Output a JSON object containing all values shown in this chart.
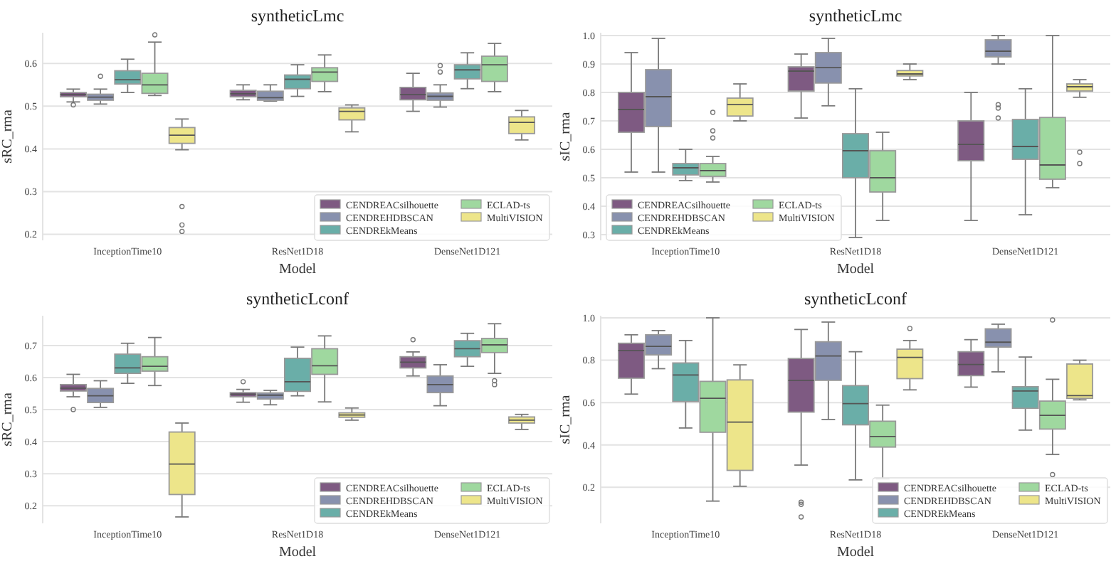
{
  "chart_data": [
    {
      "type": "box",
      "title": "syntheticLmc",
      "xlabel": "Model",
      "ylabel": "sRC_rma",
      "categories": [
        "InceptionTime10",
        "ResNet1D18",
        "DenseNet1D121"
      ],
      "ylim": [
        0.186,
        0.672
      ],
      "yticks": [
        0.2,
        0.3,
        0.4,
        0.5,
        0.6
      ],
      "grid": "y",
      "legend": "bottom right",
      "series": [
        {
          "name": "CENDREACsilhouette",
          "color": "#7e5a82",
          "boxes": [
            {
              "low": 0.51,
              "q1": 0.522,
              "median": 0.527,
              "q3": 0.532,
              "high": 0.54,
              "outliers": [
                0.503
              ]
            },
            {
              "low": 0.515,
              "q1": 0.522,
              "median": 0.529,
              "q3": 0.537,
              "high": 0.55
            },
            {
              "low": 0.488,
              "q1": 0.515,
              "median": 0.527,
              "q3": 0.544,
              "high": 0.577
            }
          ]
        },
        {
          "name": "CENDREHDBSCAN",
          "color": "#8891ae",
          "boxes": [
            {
              "low": 0.505,
              "q1": 0.514,
              "median": 0.521,
              "q3": 0.528,
              "high": 0.54,
              "outliers": [
                0.57
              ]
            },
            {
              "low": 0.512,
              "q1": 0.514,
              "median": 0.52,
              "q3": 0.535,
              "high": 0.55
            },
            {
              "low": 0.498,
              "q1": 0.514,
              "median": 0.523,
              "q3": 0.531,
              "high": 0.55,
              "outliers": [
                0.58,
                0.595
              ]
            }
          ]
        },
        {
          "name": "CENDREkMeans",
          "color": "#6aaea8",
          "boxes": [
            {
              "low": 0.532,
              "q1": 0.552,
              "median": 0.562,
              "q3": 0.583,
              "high": 0.61
            },
            {
              "low": 0.523,
              "q1": 0.541,
              "median": 0.563,
              "q3": 0.573,
              "high": 0.597
            },
            {
              "low": 0.541,
              "q1": 0.564,
              "median": 0.585,
              "q3": 0.597,
              "high": 0.625
            }
          ]
        },
        {
          "name": "ECLAD-ts",
          "color": "#9fd89f",
          "boxes": [
            {
              "low": 0.525,
              "q1": 0.53,
              "median": 0.55,
              "q3": 0.577,
              "high": 0.65,
              "outliers": [
                0.667
              ]
            },
            {
              "low": 0.534,
              "q1": 0.558,
              "median": 0.58,
              "q3": 0.59,
              "high": 0.62
            },
            {
              "low": 0.534,
              "q1": 0.558,
              "median": 0.597,
              "q3": 0.617,
              "high": 0.647
            }
          ]
        },
        {
          "name": "MultiVISION",
          "color": "#ede58a",
          "boxes": [
            {
              "low": 0.398,
              "q1": 0.413,
              "median": 0.432,
              "q3": 0.45,
              "high": 0.47,
              "outliers": [
                0.265,
                0.222,
                0.207
              ]
            },
            {
              "low": 0.44,
              "q1": 0.468,
              "median": 0.488,
              "q3": 0.496,
              "high": 0.503
            },
            {
              "low": 0.421,
              "q1": 0.436,
              "median": 0.462,
              "q3": 0.475,
              "high": 0.49
            }
          ]
        }
      ]
    },
    {
      "type": "box",
      "title": "syntheticLmc",
      "xlabel": "Model",
      "ylabel": "sIC_rma",
      "categories": [
        "InceptionTime10",
        "ResNet1D18",
        "DenseNet1D121"
      ],
      "ylim": [
        0.28,
        1.01
      ],
      "yticks": [
        0.3,
        0.4,
        0.5,
        0.6,
        0.7,
        0.8,
        0.9,
        {
          "value": 1.0,
          "label": "1.0"
        }
      ],
      "grid": "y",
      "legend": "bottom left",
      "series": [
        {
          "name": "CENDREACsilhouette",
          "color": "#7e5a82",
          "boxes": [
            {
              "low": 0.52,
              "q1": 0.66,
              "median": 0.74,
              "q3": 0.8,
              "high": 0.94
            },
            {
              "low": 0.71,
              "q1": 0.805,
              "median": 0.875,
              "q3": 0.89,
              "high": 0.935
            },
            {
              "low": 0.35,
              "q1": 0.56,
              "median": 0.617,
              "q3": 0.7,
              "high": 0.8
            }
          ]
        },
        {
          "name": "CENDREHDBSCAN",
          "color": "#8891ae",
          "boxes": [
            {
              "low": 0.52,
              "q1": 0.68,
              "median": 0.785,
              "q3": 0.88,
              "high": 0.99
            },
            {
              "low": 0.753,
              "q1": 0.833,
              "median": 0.887,
              "q3": 0.94,
              "high": 0.99
            },
            {
              "low": 0.9,
              "q1": 0.925,
              "median": 0.945,
              "q3": 0.985,
              "high": 1.0,
              "outliers": [
                0.71,
                0.745,
                0.757
              ]
            }
          ]
        },
        {
          "name": "CENDREkMeans",
          "color": "#6aaea8",
          "boxes": [
            {
              "low": 0.49,
              "q1": 0.51,
              "median": 0.535,
              "q3": 0.55,
              "high": 0.6
            },
            {
              "low": 0.29,
              "q1": 0.5,
              "median": 0.595,
              "q3": 0.655,
              "high": 0.813
            },
            {
              "low": 0.37,
              "q1": 0.565,
              "median": 0.61,
              "q3": 0.705,
              "high": 0.813
            }
          ]
        },
        {
          "name": "ECLAD-ts",
          "color": "#9fd89f",
          "boxes": [
            {
              "low": 0.485,
              "q1": 0.505,
              "median": 0.525,
              "q3": 0.55,
              "high": 0.575,
              "outliers": [
                0.64,
                0.665,
                0.73
              ]
            },
            {
              "low": 0.35,
              "q1": 0.45,
              "median": 0.5,
              "q3": 0.595,
              "high": 0.66
            },
            {
              "low": 0.465,
              "q1": 0.495,
              "median": 0.545,
              "q3": 0.712,
              "high": 1.0
            }
          ]
        },
        {
          "name": "MultiVISION",
          "color": "#ede58a",
          "boxes": [
            {
              "low": 0.7,
              "q1": 0.717,
              "median": 0.757,
              "q3": 0.78,
              "high": 0.83
            },
            {
              "low": 0.845,
              "q1": 0.858,
              "median": 0.865,
              "q3": 0.877,
              "high": 0.9
            },
            {
              "low": 0.783,
              "q1": 0.805,
              "median": 0.82,
              "q3": 0.83,
              "high": 0.845,
              "outliers": [
                0.55,
                0.59
              ]
            }
          ]
        }
      ]
    },
    {
      "type": "box",
      "title": "syntheticLconf",
      "xlabel": "Model",
      "ylabel": "sRC_rma",
      "categories": [
        "InceptionTime10",
        "ResNet1D18",
        "DenseNet1D121"
      ],
      "ylim": [
        0.145,
        0.793
      ],
      "yticks": [
        0.2,
        0.3,
        0.4,
        0.5,
        0.6,
        0.7
      ],
      "grid": "y",
      "legend": "bottom right",
      "series": [
        {
          "name": "CENDREACsilhouette",
          "color": "#7e5a82",
          "boxes": [
            {
              "low": 0.54,
              "q1": 0.558,
              "median": 0.567,
              "q3": 0.578,
              "high": 0.61,
              "outliers": [
                0.5
              ]
            },
            {
              "low": 0.523,
              "q1": 0.54,
              "median": 0.548,
              "q3": 0.553,
              "high": 0.563,
              "outliers": [
                0.587
              ]
            },
            {
              "low": 0.605,
              "q1": 0.63,
              "median": 0.648,
              "q3": 0.665,
              "high": 0.68,
              "outliers": [
                0.718
              ]
            }
          ]
        },
        {
          "name": "CENDREHDBSCAN",
          "color": "#8891ae",
          "boxes": [
            {
              "low": 0.507,
              "q1": 0.522,
              "median": 0.543,
              "q3": 0.566,
              "high": 0.59
            },
            {
              "low": 0.515,
              "q1": 0.533,
              "median": 0.545,
              "q3": 0.552,
              "high": 0.56
            },
            {
              "low": 0.512,
              "q1": 0.553,
              "median": 0.578,
              "q3": 0.605,
              "high": 0.64
            }
          ]
        },
        {
          "name": "CENDREkMeans",
          "color": "#6aaea8",
          "boxes": [
            {
              "low": 0.582,
              "q1": 0.613,
              "median": 0.63,
              "q3": 0.673,
              "high": 0.707
            },
            {
              "low": 0.543,
              "q1": 0.557,
              "median": 0.587,
              "q3": 0.66,
              "high": 0.695
            },
            {
              "low": 0.635,
              "q1": 0.665,
              "median": 0.69,
              "q3": 0.715,
              "high": 0.738
            }
          ]
        },
        {
          "name": "ECLAD-ts",
          "color": "#9fd89f",
          "boxes": [
            {
              "low": 0.575,
              "q1": 0.62,
              "median": 0.635,
              "q3": 0.665,
              "high": 0.725
            },
            {
              "low": 0.524,
              "q1": 0.61,
              "median": 0.637,
              "q3": 0.69,
              "high": 0.73
            },
            {
              "low": 0.613,
              "q1": 0.678,
              "median": 0.702,
              "q3": 0.722,
              "high": 0.768,
              "outliers": [
                0.578,
                0.59
              ]
            }
          ]
        },
        {
          "name": "MultiVISION",
          "color": "#ede58a",
          "boxes": [
            {
              "low": 0.165,
              "q1": 0.235,
              "median": 0.33,
              "q3": 0.43,
              "high": 0.458
            },
            {
              "low": 0.467,
              "q1": 0.476,
              "median": 0.483,
              "q3": 0.49,
              "high": 0.505
            },
            {
              "low": 0.438,
              "q1": 0.458,
              "median": 0.467,
              "q3": 0.477,
              "high": 0.485
            }
          ]
        }
      ]
    },
    {
      "type": "box",
      "title": "syntheticLconf",
      "xlabel": "Model",
      "ylabel": "sIC_rma",
      "categories": [
        "InceptionTime10",
        "ResNet1D18",
        "DenseNet1D121"
      ],
      "ylim": [
        0.03,
        1.01
      ],
      "yticks": [
        0.2,
        0.4,
        0.6,
        0.8,
        {
          "value": 1.0,
          "label": "1.0"
        }
      ],
      "grid": "y",
      "legend": "bottom right",
      "series": [
        {
          "name": "CENDREACsilhouette",
          "color": "#7e5a82",
          "boxes": [
            {
              "low": 0.64,
              "q1": 0.715,
              "median": 0.845,
              "q3": 0.88,
              "high": 0.92
            },
            {
              "low": 0.305,
              "q1": 0.555,
              "median": 0.705,
              "q3": 0.808,
              "high": 0.945,
              "outliers": [
                0.13,
                0.12,
                0.06
              ]
            },
            {
              "low": 0.673,
              "q1": 0.727,
              "median": 0.78,
              "q3": 0.84,
              "high": 0.897
            }
          ]
        },
        {
          "name": "CENDREHDBSCAN",
          "color": "#8891ae",
          "boxes": [
            {
              "low": 0.76,
              "q1": 0.825,
              "median": 0.865,
              "q3": 0.92,
              "high": 0.94
            },
            {
              "low": 0.52,
              "q1": 0.705,
              "median": 0.82,
              "q3": 0.887,
              "high": 0.98
            },
            {
              "low": 0.745,
              "q1": 0.862,
              "median": 0.885,
              "q3": 0.948,
              "high": 0.97
            }
          ]
        },
        {
          "name": "CENDREkMeans",
          "color": "#6aaea8",
          "boxes": [
            {
              "low": 0.48,
              "q1": 0.605,
              "median": 0.73,
              "q3": 0.787,
              "high": 0.893
            },
            {
              "low": 0.235,
              "q1": 0.495,
              "median": 0.595,
              "q3": 0.68,
              "high": 0.84
            },
            {
              "low": 0.47,
              "q1": 0.573,
              "median": 0.655,
              "q3": 0.675,
              "high": 0.815
            }
          ]
        },
        {
          "name": "ECLAD-ts",
          "color": "#9fd89f",
          "boxes": [
            {
              "low": 0.135,
              "q1": 0.46,
              "median": 0.62,
              "q3": 0.7,
              "high": 1.0
            },
            {
              "low": 0.24,
              "q1": 0.39,
              "median": 0.44,
              "q3": 0.512,
              "high": 0.588
            },
            {
              "low": 0.355,
              "q1": 0.475,
              "median": 0.54,
              "q3": 0.607,
              "high": 0.71,
              "outliers": [
                0.26,
                0.99
              ]
            }
          ]
        },
        {
          "name": "MultiVISION",
          "color": "#ede58a",
          "boxes": [
            {
              "low": 0.205,
              "q1": 0.28,
              "median": 0.508,
              "q3": 0.707,
              "high": 0.778
            },
            {
              "low": 0.66,
              "q1": 0.713,
              "median": 0.813,
              "q3": 0.852,
              "high": 0.893,
              "outliers": [
                0.95
              ]
            },
            {
              "low": 0.613,
              "q1": 0.62,
              "median": 0.633,
              "q3": 0.782,
              "high": 0.8
            }
          ]
        }
      ]
    }
  ]
}
